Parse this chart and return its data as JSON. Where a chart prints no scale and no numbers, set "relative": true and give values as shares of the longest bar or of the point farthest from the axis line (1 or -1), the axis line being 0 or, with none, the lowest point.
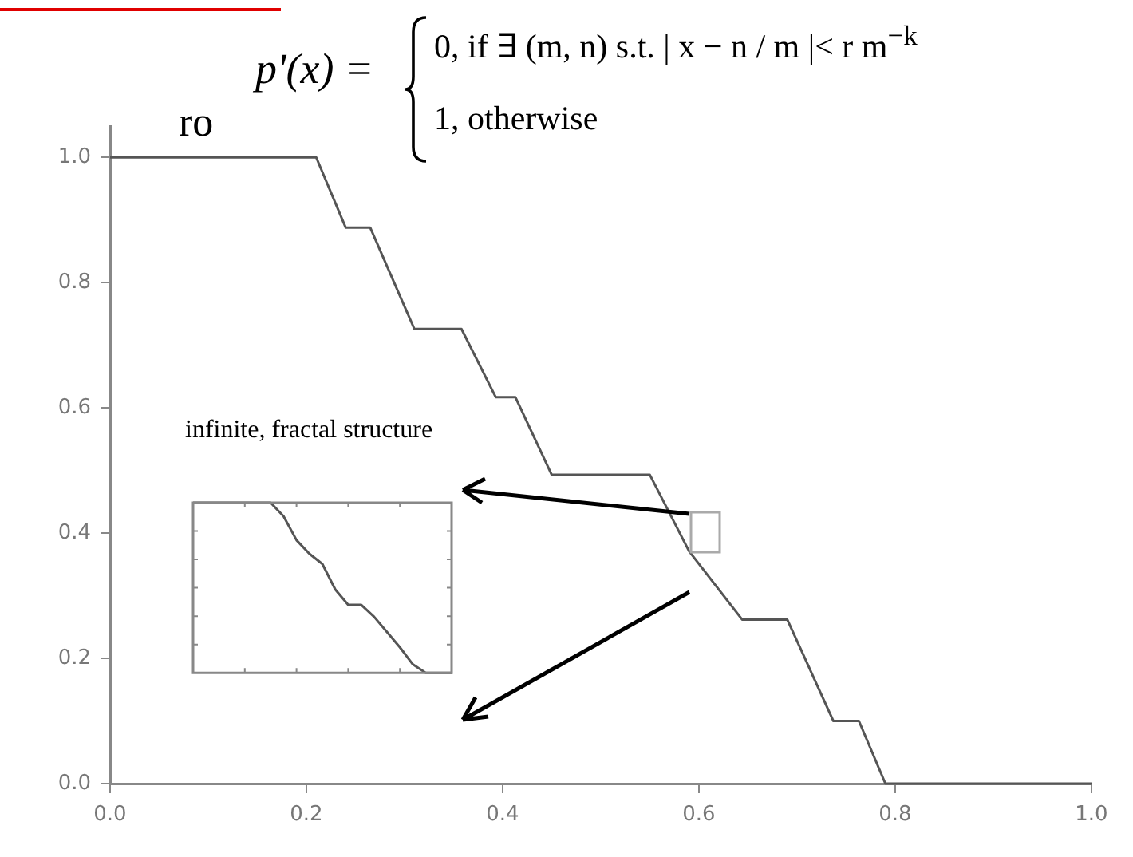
{
  "chart_data": [
    {
      "type": "line",
      "color": "#555555",
      "x": [
        0,
        0.21,
        0.24,
        0.265,
        0.31,
        0.358,
        0.393,
        0.413,
        0.45,
        0.55,
        0.59,
        0.644,
        0.69,
        0.737,
        0.763,
        0.79,
        1.0
      ],
      "values": [
        1.0,
        1.0,
        0.888,
        0.888,
        0.726,
        0.726,
        0.617,
        0.617,
        0.493,
        0.493,
        0.371,
        0.262,
        0.262,
        0.1,
        0.1,
        0,
        0
      ],
      "xlim": [
        0,
        1.0
      ],
      "ylim": [
        0,
        1.05
      ],
      "xticks": [
        {
          "value": 0,
          "label": "0.0"
        },
        {
          "value": 0.2,
          "label": "0.2"
        },
        {
          "value": 0.4,
          "label": "0.4"
        },
        {
          "value": 0.6,
          "label": "0.6"
        },
        {
          "value": 0.8,
          "label": "0.8"
        },
        {
          "value": 1,
          "label": "1.0"
        }
      ],
      "yticks": [
        {
          "value": 0,
          "label": "0.0"
        },
        {
          "value": 0.2,
          "label": "0.2"
        },
        {
          "value": 0.4,
          "label": "0.4"
        },
        {
          "value": 0.6,
          "label": "0.6"
        },
        {
          "value": 0.8,
          "label": "0.8"
        },
        {
          "value": 1,
          "label": "1.0"
        }
      ],
      "grid": false,
      "legend": false,
      "annotations": [
        "ro",
        "p'(x) =",
        "0,  if ∃ (m, n) s.t. | x − n / m |< r m$^{−k}$",
        "1,  otherwise",
        "infinite, fractal structure"
      ]
    },
    {
      "type": "line",
      "color": "#555555",
      "relative": true,
      "grid": false,
      "legend": false,
      "categories": [
        null,
        null,
        null,
        null,
        null,
        null,
        null,
        null,
        null,
        null,
        null,
        null,
        null,
        null,
        null,
        null,
        null,
        null,
        null,
        null,
        null
      ],
      "values": [
        1,
        1,
        1,
        1,
        1,
        1,
        1,
        0.92,
        0.78,
        0.7,
        0.64,
        0.49,
        0.4,
        0.4,
        0.33,
        0.24,
        0.15,
        0.05,
        0,
        0,
        0
      ]
    }
  ]
}
